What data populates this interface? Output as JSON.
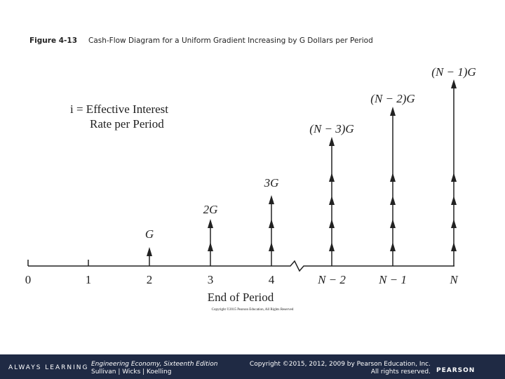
{
  "caption": {
    "figure": "Figure 4-13",
    "title": "Cash-Flow Diagram for a Uniform Gradient Increasing by G Dollars per Period"
  },
  "diagram": {
    "interest_note": [
      "i = Effective Interest",
      "Rate per Period"
    ],
    "periods": [
      "0",
      "1",
      "2",
      "3",
      "4",
      "N − 2",
      "N − 1",
      "N"
    ],
    "arrow_labels": [
      "G",
      "2G",
      "3G",
      "(N − 3)G",
      "(N − 2)G",
      "(N − 1)G"
    ],
    "axis_title": "End of Period",
    "image_copyright": "Copyright ©2015 Pearson Education, All Rights Reserved"
  },
  "footer": {
    "brand": "ALWAYS LEARNING",
    "book": [
      "Engineering Economy, Sixteenth Edition",
      "Sullivan | Wicks | Koelling"
    ],
    "copyright": [
      "Copyright ©2015, 2012, 2009 by Pearson Education, Inc.",
      "All rights reserved."
    ],
    "logo": "PEARSON"
  }
}
